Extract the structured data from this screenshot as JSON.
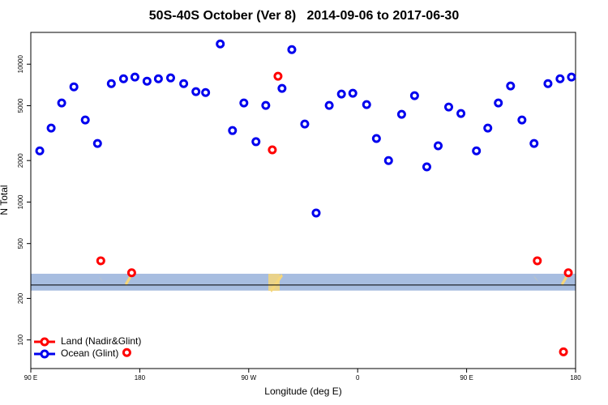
{
  "chart_data": {
    "type": "scatter",
    "title": "50S-40S October (Ver 8)   2014-09-06 to 2017-06-30",
    "x_label": "Longitude (deg E)",
    "y_label": "N Total",
    "log_y": true,
    "legend_position": "lower left",
    "xlim": [
      90,
      540
    ],
    "ylim": [
      62,
      17000
    ],
    "xticks": [
      {
        "value": 90,
        "label": "90 E"
      },
      180,
      {
        "value": 270,
        "label": "90 W"
      },
      {
        "value": 360,
        "label": "0"
      },
      {
        "value": 450,
        "label": "90 E"
      },
      {
        "value": 540,
        "label": "180"
      }
    ],
    "yticks": [
      100,
      200,
      500,
      1000,
      2000,
      5000,
      10000
    ],
    "band": [
      228,
      302
    ],
    "band_color": "#a7bde0",
    "reference_line": 250,
    "series": [
      {
        "name": "Land (Nadir&Glint)",
        "color": "#ff0000",
        "x": [
          147.8,
          173.3,
          289.5,
          294.2,
          508.4,
          534,
          169.3,
          530
        ],
        "values": [
          375,
          307,
          2390,
          8170,
          375,
          307,
          81,
          82
        ]
      },
      {
        "name": "Ocean (Glint)",
        "color": "#0000ee",
        "x": [
          97.4,
          106.8,
          115.5,
          125.6,
          135,
          145.1,
          156.5,
          166.6,
          176,
          186,
          195.4,
          205.5,
          216.3,
          226.4,
          234.4,
          246.5,
          256.6,
          266,
          276,
          284.1,
          297.5,
          305.6,
          316.3,
          325.7,
          336.5,
          346.6,
          356,
          367.4,
          375.5,
          385.5,
          396.3,
          407,
          417.1,
          426.5,
          435.2,
          445.3,
          458.1,
          467.5,
          476.2,
          486.3,
          495.7,
          505.7,
          517.2,
          527.2,
          536.6
        ],
        "values": [
          2350,
          3440,
          5230,
          6850,
          3940,
          2660,
          7230,
          7840,
          8060,
          7530,
          7840,
          7950,
          7230,
          6320,
          6230,
          14020,
          3300,
          5230,
          2740,
          5020,
          6670,
          12760,
          3680,
          833,
          5020,
          6070,
          6150,
          5090,
          2890,
          2000,
          4330,
          5910,
          1800,
          2560,
          4890,
          4390,
          2350,
          3440,
          5230,
          6950,
          3940,
          2660,
          7230,
          7840,
          8060
        ]
      }
    ]
  }
}
